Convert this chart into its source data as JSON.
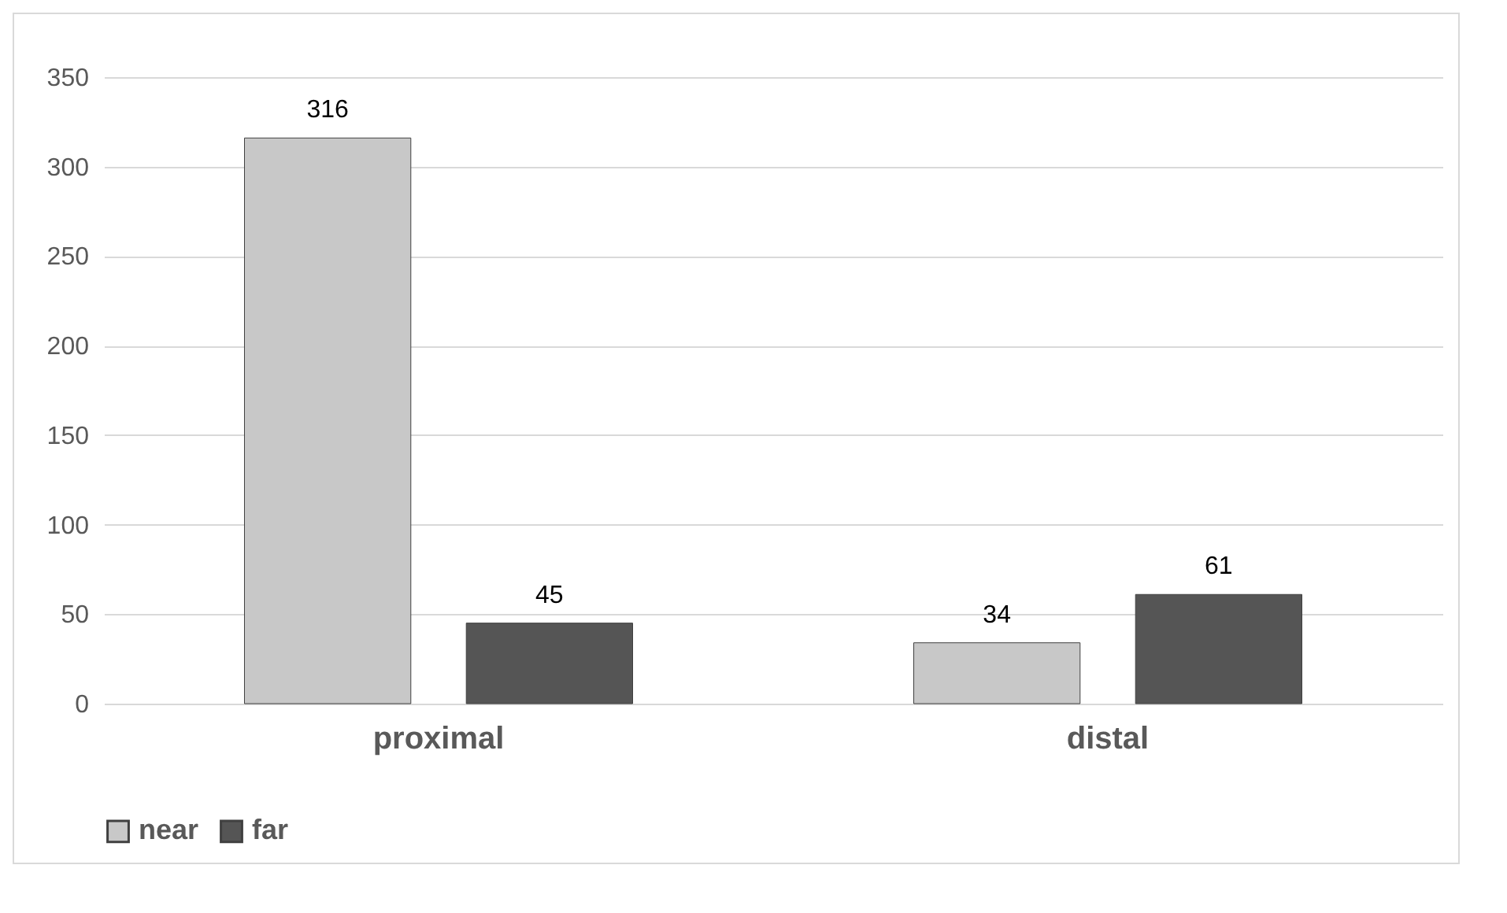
{
  "chart_data": {
    "type": "bar",
    "categories": [
      "proximal",
      "distal"
    ],
    "series": [
      {
        "name": "near",
        "color": "#c8c8c8",
        "values": [
          316,
          34
        ]
      },
      {
        "name": "far",
        "color": "#555555",
        "values": [
          45,
          61
        ]
      }
    ],
    "ylim": [
      0,
      350
    ],
    "yticks": [
      0,
      50,
      100,
      150,
      200,
      250,
      300,
      350
    ],
    "grid": "y",
    "legend": "bottom",
    "data_labels": true
  }
}
